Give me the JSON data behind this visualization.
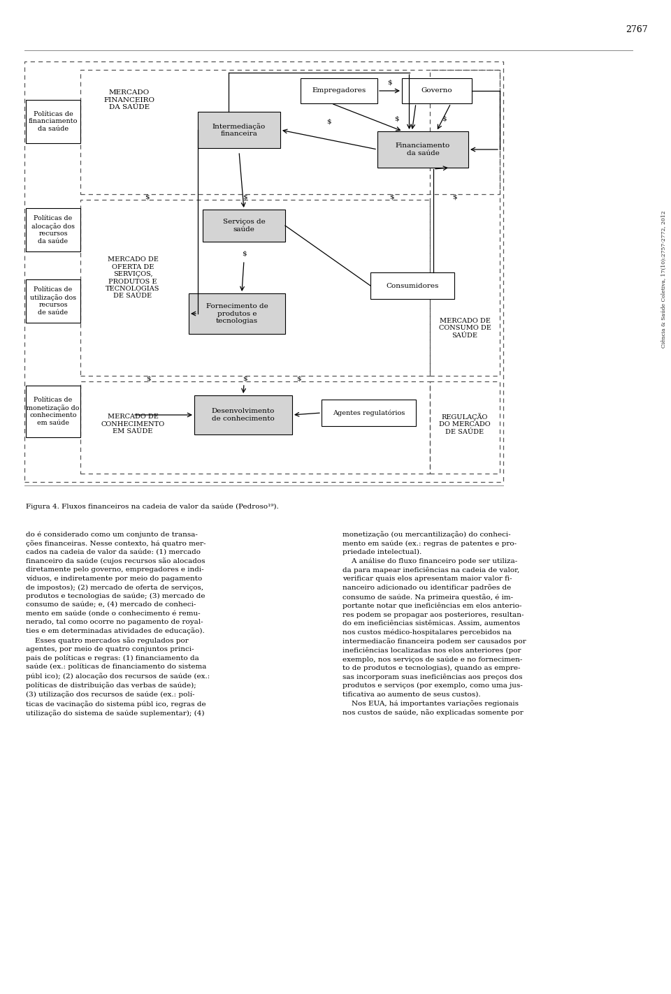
{
  "fig_width": 9.6,
  "fig_height": 14.23,
  "box_fill_gray": "#d4d4d4",
  "box_fill_white": "#ffffff",
  "title_text": "Figura 4. Fluxos financeiros na cadeia de valor da saúde (Pedroso¹⁹).",
  "body_left": "do é considerado como um conjunto de transa-\nções financeiras. Nesse contexto, há quatro mer-\ncados na cadeia de valor da saúde: (1) mercado\nfinanceiro da saúde (cujos recursos são alocados\ndiretamente pelo governo, empregadores e indi-\nvíduos, e indiretamente por meio do pagamento\nde impostos); (2) mercado de oferta de serviços,\nprodutos e tecnologias de saúde; (3) mercado de\nconsumo de saúde; e, (4) mercado de conheci-\nmento em saúde (onde o conhecimento é remu-\nnerado, tal como ocorre no pagamento de royal-\nties e em determinadas atividades de educação).\n    Esses quatro mercados são regulados por\nagentes, por meio de quatro conjuntos princi-\npais de políticas e regras: (1) financiamento da\nsaúde (ex.: políticas de financiamento do sistema\npúbl ico); (2) alocação dos recursos de saúde (ex.:\npolíticas de distribuição das verbas de saúde);\n(3) utilização dos recursos de saúde (ex.: polí-\nticas de vacinação do sistema públ ico, regras de\nutilização do sistema de saúde suplementar); (4)",
  "body_right": "monetização (ou mercantilização) do conheci-\nmento em saúde (ex.: regras de patentes e pro-\npriedade intelectual).\n    A análise do fluxo financeiro pode ser utiliza-\nda para mapear ineficiências na cadeia de valor,\nverificar quais elos apresentam maior valor fi-\nnanceiro adicionado ou identificar padrões de\nconsumo de saúde. Na primeira questão, é im-\nportante notar que ineficiências em elos anterio-\nres podem se propagar aos posteriores, resultan-\ndo em ineficiências sistêmicas. Assim, aumentos\nnos custos médico-hospitalares percebidos na\nintermediacão financeira podem ser causados por\nineficiências localizadas nos elos anteriores (por\nexemplo, nos serviços de saúde e no fornecimen-\nto de produtos e tecnologias), quando as empre-\nsas incorporam suas ineficiências aos preços dos\nprodutos e serviços (por exemplo, como uma jus-\ntificativa ao aumento de seus custos).\n    Nos EUA, há importantes variações regionais\nnos custos de saúde, não explicadas somente por"
}
